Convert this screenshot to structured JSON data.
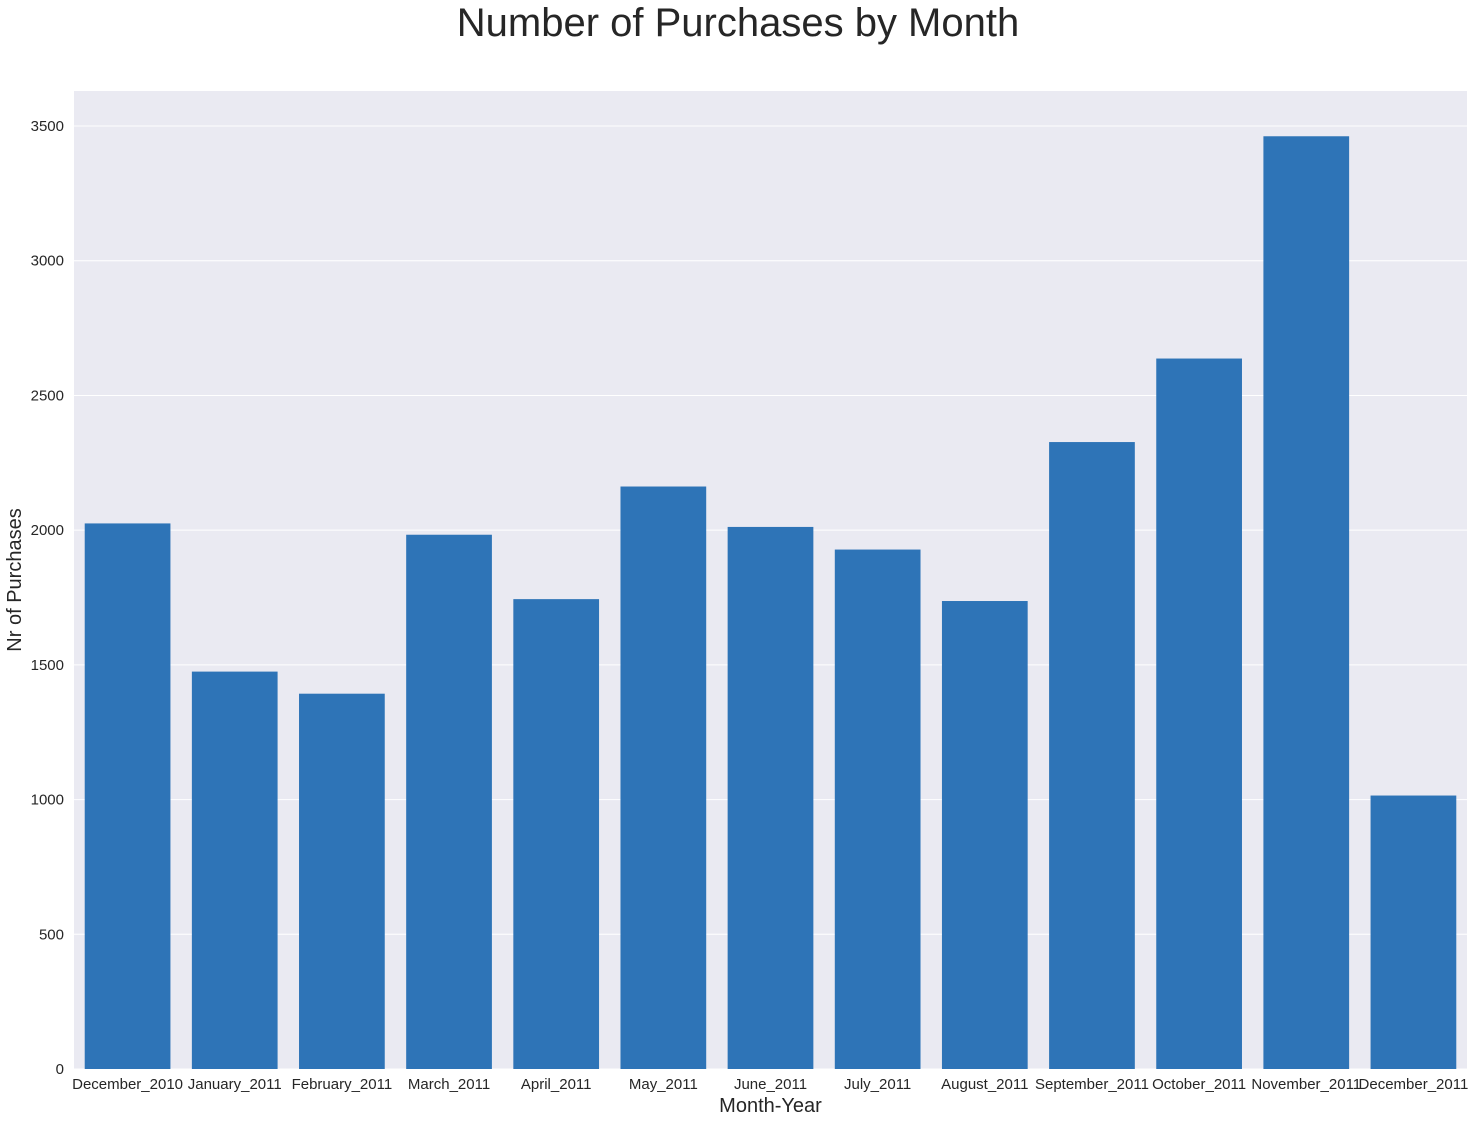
{
  "chart_data": {
    "type": "bar",
    "title": "Number of Purchases by Month",
    "xlabel": "Month-Year",
    "ylabel": "Nr of Purchases",
    "categories": [
      "December_2010",
      "January_2011",
      "February_2011",
      "March_2011",
      "April_2011",
      "May_2011",
      "June_2011",
      "July_2011",
      "August_2011",
      "September_2011",
      "October_2011",
      "November_2011",
      "December_2011"
    ],
    "values": [
      2025,
      1475,
      1393,
      1983,
      1744,
      2162,
      2012,
      1928,
      1737,
      2327,
      2637,
      3462,
      1015
    ],
    "ylim": [
      0,
      3630
    ],
    "yticks": [
      0,
      500,
      1000,
      1500,
      2000,
      2500,
      3000,
      3500
    ],
    "grid": true,
    "bar_color": "#2e74b7",
    "background_color": "#eaeaf2"
  }
}
